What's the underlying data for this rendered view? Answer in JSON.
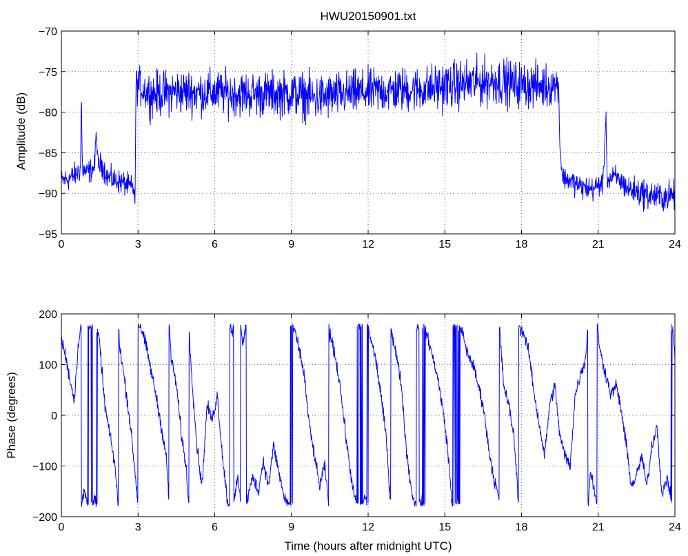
{
  "chart_data": [
    {
      "type": "line",
      "title": "HWU20150901.txt",
      "xlabel": "",
      "ylabel": "Amplitude (dB)",
      "xlim": [
        0,
        24
      ],
      "ylim": [
        -95,
        -70
      ],
      "xticks": [
        0,
        3,
        6,
        9,
        12,
        15,
        18,
        21,
        24
      ],
      "yticks": [
        -95,
        -90,
        -85,
        -80,
        -75,
        -70
      ],
      "grid": true,
      "line_color": "#0000ff",
      "series": [
        {
          "x": [
            0,
            0.3,
            0.6,
            0.75,
            0.78,
            0.82,
            1.0,
            1.3,
            1.37,
            1.42,
            1.6,
            1.8,
            2.0,
            2.3,
            2.6,
            2.85,
            2.88,
            2.92,
            3.5,
            4.5,
            6,
            7.5,
            9,
            10,
            11,
            12,
            13,
            14,
            15,
            16,
            17,
            18,
            19,
            19.45,
            19.5,
            19.6,
            20.0,
            20.4,
            20.8,
            21.2,
            21.3,
            21.35,
            21.4,
            21.7,
            22.2,
            22.8,
            23.4,
            24
          ],
          "y": [
            -88.5,
            -88.2,
            -87.6,
            -87.0,
            -77.5,
            -87.0,
            -87.5,
            -86.8,
            -82.0,
            -86.5,
            -86.5,
            -88.0,
            -88.3,
            -88.6,
            -89.0,
            -89.5,
            -92.0,
            -76.5,
            -77.8,
            -77.5,
            -77.6,
            -77.8,
            -77.7,
            -78.3,
            -77.8,
            -77.5,
            -77.3,
            -77.2,
            -76.8,
            -76.4,
            -76.2,
            -76.6,
            -76.8,
            -76.5,
            -84.0,
            -88.0,
            -88.6,
            -89.3,
            -89.5,
            -88.6,
            -80.0,
            -88.0,
            -88.4,
            -88.0,
            -89.5,
            -90.0,
            -90.5,
            -90.2
          ],
          "noise": [
            0.8,
            0.8,
            0.8,
            0.8,
            0.5,
            0.8,
            0.8,
            0.8,
            0.5,
            0.8,
            0.8,
            0.8,
            0.8,
            0.8,
            0.8,
            0.8,
            0.4,
            1.2,
            1.5,
            1.5,
            1.5,
            1.5,
            1.5,
            1.6,
            1.5,
            1.5,
            1.5,
            1.5,
            1.6,
            1.6,
            1.6,
            1.5,
            1.5,
            1.0,
            0.8,
            0.7,
            0.8,
            0.8,
            0.8,
            0.8,
            0.5,
            0.8,
            0.8,
            0.8,
            0.9,
            1.0,
            1.0,
            1.0
          ]
        }
      ]
    },
    {
      "type": "line",
      "title": "",
      "xlabel": "Time (hours after midnight UTC)",
      "ylabel": "Phase (degrees)",
      "xlim": [
        0,
        24
      ],
      "ylim": [
        -200,
        200
      ],
      "xticks": [
        0,
        3,
        6,
        9,
        12,
        15,
        18,
        21,
        24
      ],
      "yticks": [
        -200,
        -100,
        0,
        100,
        200
      ],
      "grid": true,
      "line_color": "#0000ff",
      "series": [
        {
          "x": [
            0,
            0.15,
            0.3,
            0.5,
            0.7,
            0.9,
            1.1,
            1.3,
            1.5,
            1.7,
            1.9,
            2.1,
            2.3,
            2.5,
            2.7,
            2.9,
            3.0,
            3.1,
            3.3,
            3.5,
            3.7,
            3.9,
            4.1,
            4.3,
            4.5,
            4.7,
            4.9,
            5.1,
            5.3,
            5.5,
            5.7,
            5.9,
            6.1,
            6.3,
            6.5,
            6.7,
            6.9,
            7.1,
            7.3,
            7.5,
            7.7,
            7.9,
            8.1,
            8.3,
            8.5,
            8.7,
            8.9,
            9.1,
            9.3,
            9.5,
            9.7,
            9.9,
            10.1,
            10.3,
            10.5,
            10.7,
            10.9,
            11.1,
            11.3,
            11.5,
            11.7,
            11.9,
            12.1,
            12.3,
            12.5,
            12.7,
            12.9,
            13.1,
            13.3,
            13.5,
            13.7,
            13.9,
            14.1,
            14.3,
            14.5,
            14.7,
            14.9,
            15.1,
            15.3,
            15.5,
            15.7,
            15.9,
            16.1,
            16.3,
            16.5,
            16.7,
            16.9,
            17.1,
            17.3,
            17.5,
            17.7,
            17.9,
            18.1,
            18.3,
            18.5,
            18.7,
            18.9,
            19.1,
            19.3,
            19.5,
            19.7,
            19.9,
            20.1,
            20.3,
            20.5,
            20.7,
            20.9,
            21.1,
            21.3,
            21.5,
            21.7,
            21.9,
            22.1,
            22.3,
            22.5,
            22.7,
            22.9,
            23.1,
            23.3,
            23.5,
            23.7,
            23.9,
            24
          ],
          "y": [
            150,
            120,
            80,
            30,
            160,
            -150,
            170,
            -160,
            140,
            20,
            -40,
            -100,
            130,
            60,
            -20,
            -120,
            -180,
            175,
            140,
            90,
            40,
            -20,
            -80,
            110,
            60,
            -40,
            -110,
            80,
            -60,
            -140,
            20,
            -10,
            40,
            -80,
            -170,
            165,
            -120,
            140,
            -160,
            -120,
            -150,
            -90,
            -140,
            -60,
            -110,
            -160,
            -175,
            170,
            130,
            80,
            -20,
            -80,
            -140,
            -100,
            160,
            120,
            60,
            -30,
            -110,
            -170,
            175,
            -160,
            150,
            110,
            40,
            -40,
            170,
            120,
            60,
            -70,
            -150,
            175,
            -170,
            160,
            120,
            80,
            20,
            -60,
            175,
            -175,
            160,
            120,
            100,
            60,
            20,
            -60,
            -120,
            -160,
            60,
            20,
            -40,
            175,
            160,
            120,
            40,
            -20,
            -80,
            20,
            60,
            -40,
            -80,
            -100,
            40,
            80,
            110,
            -110,
            -160,
            120,
            80,
            40,
            60,
            10,
            -60,
            -140,
            -120,
            -80,
            -140,
            -60,
            -20,
            -160,
            -120,
            175,
            120
          ],
          "wrap": true
        }
      ]
    }
  ]
}
